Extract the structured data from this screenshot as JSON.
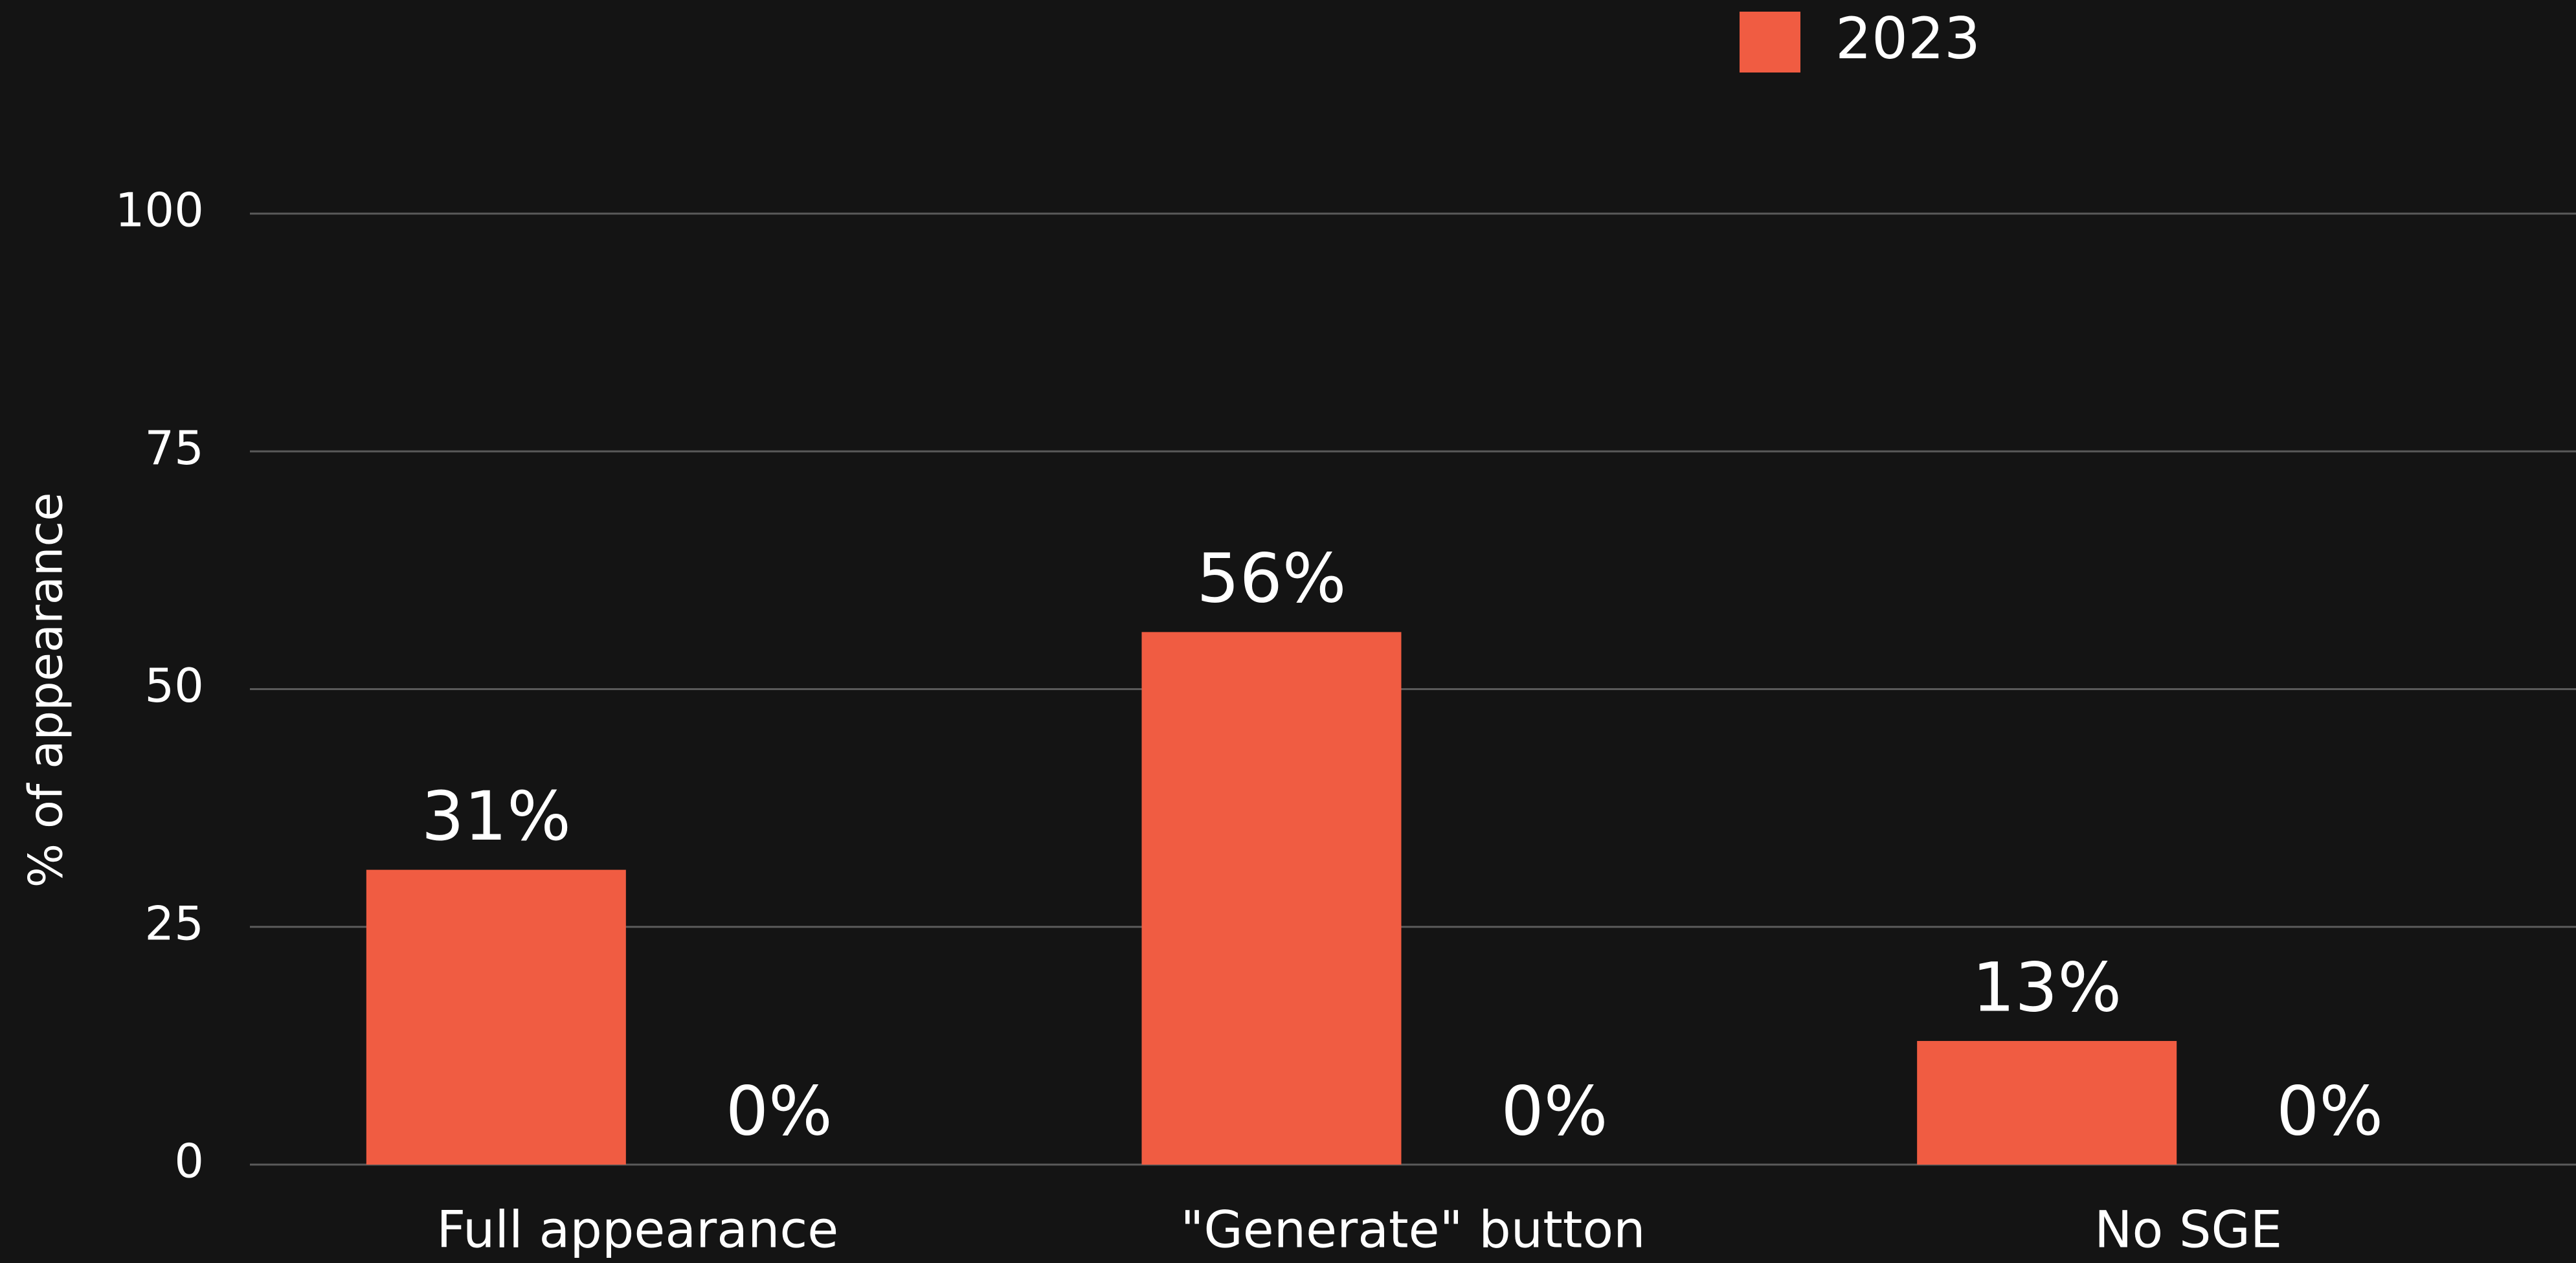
{
  "chart_data": {
    "type": "bar",
    "y_label": "% of appearance",
    "categories": [
      "Full appearance",
      "\"Generate\" button",
      "No SGE"
    ],
    "series": [
      {
        "name": "2023",
        "color": "#f05c42",
        "values": [
          31,
          56,
          13
        ],
        "value_labels": [
          "31%",
          "56%",
          "13%"
        ]
      },
      {
        "color": "#262626",
        "values": [
          0,
          0,
          0
        ],
        "value_labels": [
          "0%",
          "0%",
          "0%"
        ]
      }
    ],
    "ylim": [
      0,
      100
    ],
    "yticks": [
      0,
      25,
      50,
      75,
      100
    ],
    "grid": true,
    "legend": "top"
  }
}
